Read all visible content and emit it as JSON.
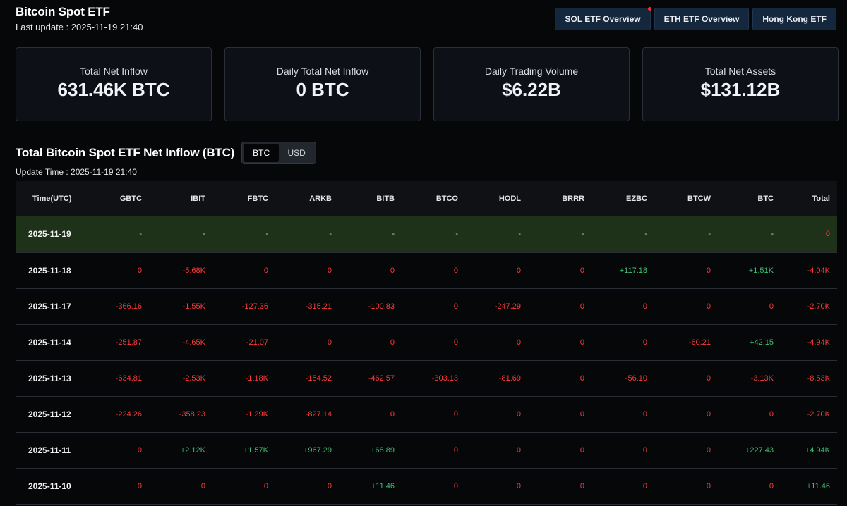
{
  "header": {
    "title": "Bitcoin Spot ETF",
    "last_update": "Last update : 2025-11-19 21:40"
  },
  "nav": {
    "sol": "SOL ETF Overview",
    "eth": "ETH ETF Overview",
    "hk": "Hong Kong ETF"
  },
  "stats": [
    {
      "label": "Total Net Inflow",
      "value": "631.46K BTC"
    },
    {
      "label": "Daily Total Net Inflow",
      "value": "0 BTC"
    },
    {
      "label": "Daily Trading Volume",
      "value": "$6.22B"
    },
    {
      "label": "Total Net Assets",
      "value": "$131.12B"
    }
  ],
  "section": {
    "title": "Total Bitcoin Spot ETF Net Inflow (BTC)",
    "toggle": [
      "BTC",
      "USD"
    ],
    "update_time": "Update Time : 2025-11-19 21:40"
  },
  "colors": {
    "positive": "#3fbf77",
    "negative": "#ff3a3a",
    "highlight_row": "#1d3218",
    "nav_button": "#15273d"
  },
  "table": {
    "columns": [
      "Time(UTC)",
      "GBTC",
      "IBIT",
      "FBTC",
      "ARKB",
      "BITB",
      "BTCO",
      "HODL",
      "BRRR",
      "EZBC",
      "BTCW",
      "BTC",
      "Total"
    ],
    "rows": [
      [
        "2025-11-19",
        "-",
        "-",
        "-",
        "-",
        "-",
        "-",
        "-",
        "-",
        "-",
        "-",
        "-",
        "0"
      ],
      [
        "2025-11-18",
        "0",
        "-5.68K",
        "0",
        "0",
        "0",
        "0",
        "0",
        "0",
        "+117.18",
        "0",
        "+1.51K",
        "-4.04K"
      ],
      [
        "2025-11-17",
        "-366.16",
        "-1.55K",
        "-127.36",
        "-315.21",
        "-100.83",
        "0",
        "-247.29",
        "0",
        "0",
        "0",
        "0",
        "-2.70K"
      ],
      [
        "2025-11-14",
        "-251.87",
        "-4.65K",
        "-21.07",
        "0",
        "0",
        "0",
        "0",
        "0",
        "0",
        "-60.21",
        "+42.15",
        "-4.94K"
      ],
      [
        "2025-11-13",
        "-634.81",
        "-2.53K",
        "-1.18K",
        "-154.52",
        "-462.57",
        "-303.13",
        "-81.69",
        "0",
        "-56.10",
        "0",
        "-3.13K",
        "-8.53K"
      ],
      [
        "2025-11-12",
        "-224.26",
        "-358.23",
        "-1.29K",
        "-827.14",
        "0",
        "0",
        "0",
        "0",
        "0",
        "0",
        "0",
        "-2.70K"
      ],
      [
        "2025-11-11",
        "0",
        "+2.12K",
        "+1.57K",
        "+967.29",
        "+68.89",
        "0",
        "0",
        "0",
        "0",
        "0",
        "+227.43",
        "+4.94K"
      ],
      [
        "2025-11-10",
        "0",
        "0",
        "0",
        "0",
        "+11.46",
        "0",
        "0",
        "0",
        "0",
        "0",
        "0",
        "+11.46"
      ]
    ]
  }
}
